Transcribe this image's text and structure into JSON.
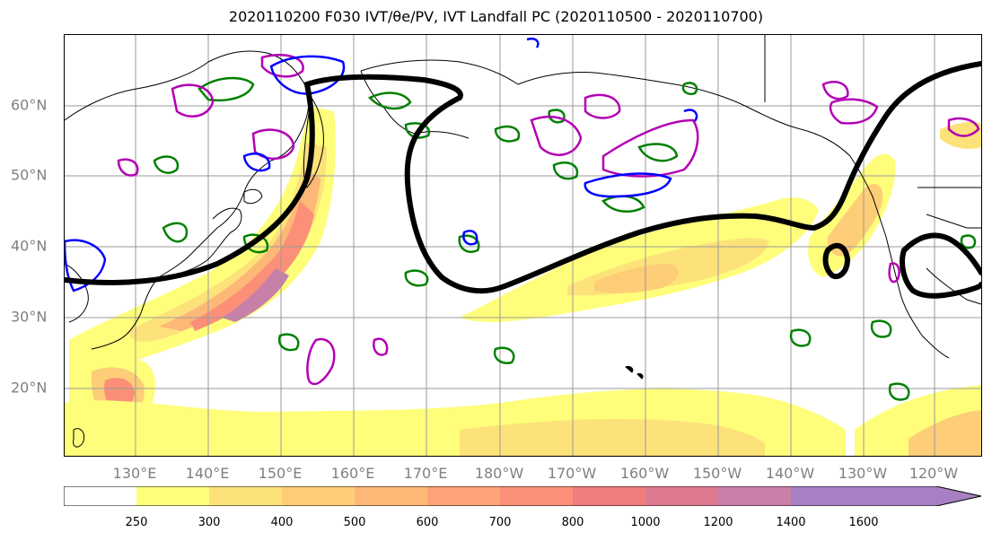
{
  "title": "2020110200 F030 IVT/θe/PV, IVT Landfall PC (2020110500 - 2020110700)",
  "lat_labels": [
    "60°N",
    "50°N",
    "40°N",
    "30°N",
    "20°N"
  ],
  "lon_labels": [
    "130°E",
    "140°E",
    "150°E",
    "160°E",
    "170°E",
    "180°W",
    "170°W",
    "160°W",
    "150°W",
    "140°W",
    "130°W",
    "120°W"
  ],
  "colorbar": {
    "ticks": [
      "250",
      "300",
      "400",
      "500",
      "600",
      "700",
      "800",
      "1000",
      "1200",
      "1400",
      "1600"
    ],
    "colors": [
      "#ffffff",
      "#fefe7a",
      "#fde27a",
      "#fdcd77",
      "#fdb877",
      "#fca377",
      "#fb8f77",
      "#f07c7c",
      "#de7a8f",
      "#c880a8",
      "#a87fc2"
    ]
  },
  "colors": {
    "pc_contour": "#000000",
    "theta_e": "#008000",
    "pv": "#b300b3",
    "pv2": "#0000ff",
    "coast": "#000000"
  }
}
